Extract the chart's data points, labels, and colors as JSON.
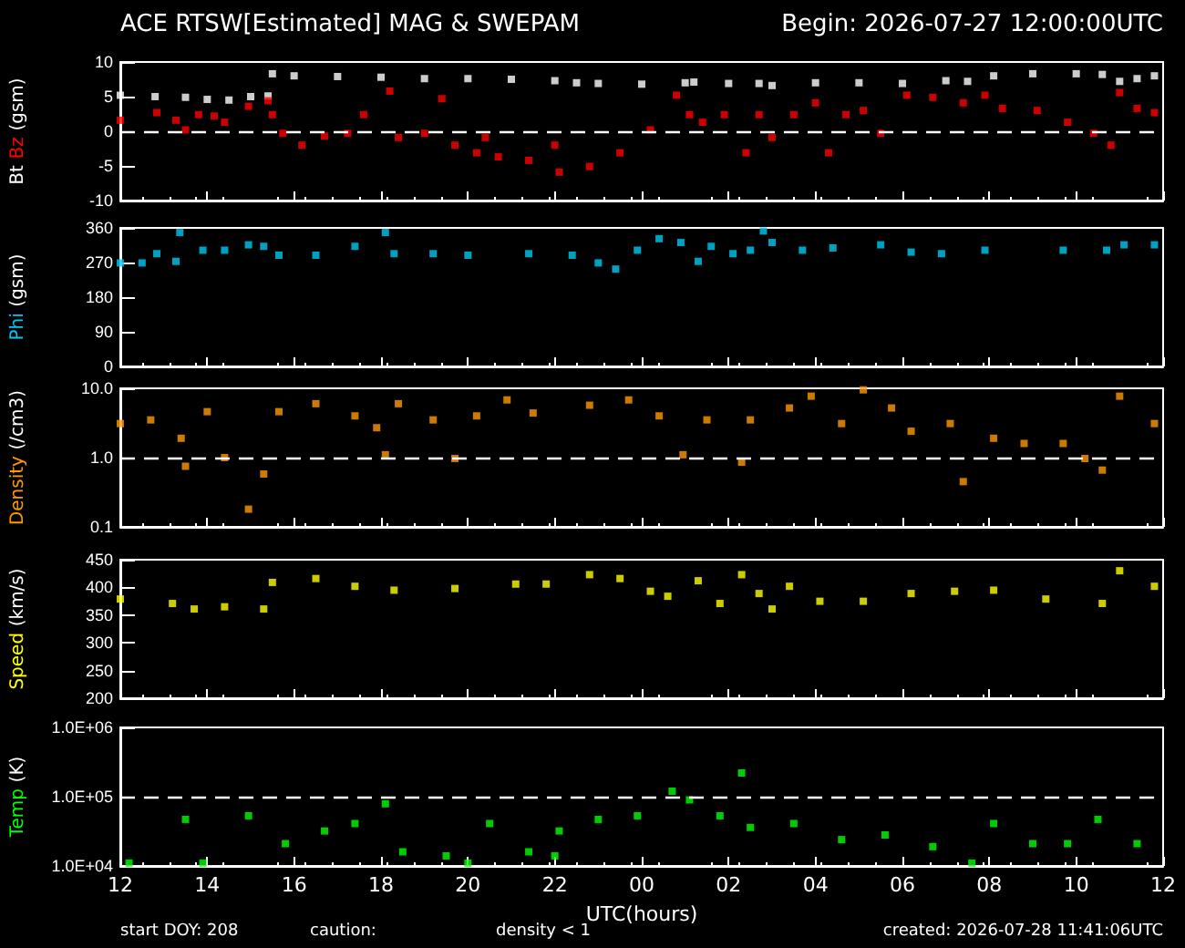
{
  "chart_data": [
    {
      "type": "scatter",
      "title": "ACE RTSW[Estimated] MAG & SWEPAM",
      "subtitle": "Begin: 2026-07-27 12:00:00UTC",
      "ylabel": "(gsm)",
      "marker": "square",
      "tick_labels": "y",
      "xlim": [
        12,
        36
      ],
      "xticks": [
        12,
        14,
        16,
        18,
        20,
        22,
        24,
        26,
        28,
        30,
        32,
        34,
        36
      ],
      "ylim": [
        -10,
        10
      ],
      "yticks": [
        -10,
        -5,
        0,
        5,
        10
      ],
      "ref_lines": [
        {
          "axis": "y",
          "value": 0,
          "color": "#ffffff",
          "line_style": "dashed"
        }
      ],
      "series": [
        {
          "name": "Bt",
          "color": "#ffffff",
          "x": [
            12,
            12.8,
            13.5,
            14,
            14.5,
            15,
            15.4,
            15.5,
            16,
            17,
            18,
            19,
            20,
            21,
            22,
            22.5,
            23,
            24,
            25,
            25.2,
            26,
            26.7,
            27,
            28,
            29,
            30,
            31,
            31.5,
            32.1,
            33,
            34,
            34.6,
            35,
            35.4,
            35.8
          ],
          "values": [
            5.2,
            5.0,
            4.9,
            4.6,
            4.5,
            5.0,
            5.1,
            8.3,
            8.0,
            7.9,
            7.8,
            7.6,
            7.6,
            7.5,
            7.3,
            7.0,
            6.9,
            6.8,
            7.0,
            7.1,
            6.9,
            6.9,
            6.6,
            7.0,
            7.0,
            6.9,
            7.3,
            7.2,
            8.0,
            8.3,
            8.3,
            8.2,
            7.2,
            7.6,
            8.0
          ]
        },
        {
          "name": "Bz",
          "color": "#ff0000",
          "x": [
            12,
            12.84,
            13.28,
            13.5,
            13.8,
            14.16,
            14.4,
            14.95,
            15.4,
            15.5,
            15.74,
            16.18,
            16.7,
            17.23,
            17.6,
            18.2,
            18.4,
            19.0,
            19.4,
            19.7,
            20.2,
            20.4,
            20.7,
            21.4,
            22.0,
            22.1,
            22.8,
            23.5,
            24.2,
            24.8,
            25.1,
            25.4,
            25.9,
            26.4,
            26.7,
            27.0,
            27.5,
            28.0,
            28.3,
            28.7,
            29.1,
            29.5,
            30.1,
            30.7,
            31.4,
            31.9,
            32.3,
            33.1,
            33.8,
            34.4,
            34.8,
            35.0,
            35.4,
            35.8
          ],
          "values": [
            1.6,
            2.7,
            1.6,
            0.2,
            2.4,
            2.2,
            1.3,
            3.6,
            4.4,
            2.4,
            -0.3,
            -2,
            -0.7,
            -0.3,
            2.4,
            5.8,
            -0.9,
            -0.3,
            4.7,
            -2,
            -3.1,
            -0.9,
            -3.7,
            -4.2,
            -2,
            -5.9,
            -5.1,
            -3.1,
            0.2,
            5.2,
            2.4,
            1.3,
            2.4,
            -3.1,
            2.4,
            -0.9,
            2.4,
            4.1,
            -3.1,
            2.4,
            3.0,
            -0.3,
            5.2,
            4.9,
            4.1,
            5.2,
            3.3,
            3.0,
            1.3,
            -0.3,
            -2,
            5.6,
            3.3,
            2.7
          ]
        }
      ]
    },
    {
      "type": "scatter",
      "ylabel": "(gsm)",
      "marker": "square",
      "tick_labels": "y",
      "xlim": [
        12,
        36
      ],
      "xticks": [
        12,
        14,
        16,
        18,
        20,
        22,
        24,
        26,
        28,
        30,
        32,
        34,
        36
      ],
      "ylim": [
        0,
        360
      ],
      "yticks": [
        0,
        90,
        180,
        270,
        360
      ],
      "series": [
        {
          "name": "Phi",
          "color": "#00c8f0",
          "x": [
            12,
            12.5,
            12.84,
            13.28,
            13.37,
            13.9,
            14.4,
            14.95,
            15.3,
            15.65,
            16.5,
            17.4,
            18.1,
            18.3,
            19.2,
            20.0,
            21.4,
            22.4,
            23.0,
            23.4,
            23.9,
            24.4,
            24.9,
            25.3,
            25.6,
            26.1,
            26.5,
            26.8,
            27.0,
            27.7,
            28.4,
            29.5,
            30.2,
            30.9,
            31.9,
            33.7,
            34.7,
            35.1,
            35.8
          ],
          "values": [
            269,
            269,
            293,
            273,
            348,
            302,
            302,
            316,
            312,
            289,
            289,
            312,
            348,
            293,
            293,
            289,
            293,
            289,
            269,
            253,
            302,
            332,
            322,
            273,
            312,
            293,
            302,
            352,
            322,
            302,
            308,
            316,
            297,
            293,
            302,
            302,
            302,
            316,
            316
          ]
        }
      ]
    },
    {
      "type": "scatter",
      "ylabel": "(/cm3)",
      "marker": "square",
      "tick_labels": "y",
      "log": "y",
      "xlim": [
        12,
        36
      ],
      "xticks": [
        12,
        14,
        16,
        18,
        20,
        22,
        24,
        26,
        28,
        30,
        32,
        34,
        36
      ],
      "ylim": [
        0.1,
        10
      ],
      "yticks": [
        {
          "value": 0.1,
          "label": "0.1"
        },
        {
          "value": 1,
          "label": "1.0"
        },
        {
          "value": 10,
          "label": "10.0"
        }
      ],
      "ref_lines": [
        {
          "axis": "y",
          "value": 1,
          "color": "#ffffff",
          "line_style": "dashed"
        }
      ],
      "series": [
        {
          "name": "Density",
          "color": "#ff9900",
          "x": [
            12,
            12.7,
            13.4,
            13.5,
            14.0,
            14.4,
            14.95,
            15.3,
            15.65,
            16.5,
            17.4,
            17.9,
            18.1,
            18.4,
            19.2,
            19.7,
            20.2,
            20.9,
            21.5,
            22.8,
            23.7,
            24.4,
            24.95,
            25.5,
            26.3,
            26.5,
            27.4,
            27.9,
            28.6,
            29.1,
            29.75,
            30.2,
            31.1,
            31.4,
            32.1,
            32.8,
            33.7,
            34.2,
            34.6,
            35.0,
            35.8
          ],
          "values": [
            3.1,
            3.5,
            1.9,
            0.75,
            4.6,
            1.0,
            0.18,
            0.58,
            4.6,
            6.0,
            4.0,
            2.7,
            1.1,
            6.0,
            3.5,
            0.97,
            4.0,
            6.8,
            4.4,
            5.7,
            6.8,
            4.0,
            1.1,
            3.5,
            0.86,
            3.5,
            5.2,
            7.7,
            3.1,
            9.5,
            5.2,
            2.4,
            3.1,
            0.45,
            1.9,
            1.6,
            1.6,
            0.97,
            0.66,
            7.7,
            3.1
          ]
        }
      ]
    },
    {
      "type": "scatter",
      "ylabel": "(km/s)",
      "marker": "square",
      "tick_labels": "y",
      "xlim": [
        12,
        36
      ],
      "xticks": [
        12,
        14,
        16,
        18,
        20,
        22,
        24,
        26,
        28,
        30,
        32,
        34,
        36
      ],
      "ylim": [
        200,
        450
      ],
      "yticks": [
        200,
        250,
        300,
        350,
        400,
        450
      ],
      "series": [
        {
          "name": "Speed",
          "color": "#ffff00",
          "x": [
            12,
            13.2,
            13.7,
            14.4,
            15.3,
            15.5,
            16.5,
            17.4,
            18.3,
            19.7,
            21.1,
            21.8,
            22.8,
            23.5,
            24.2,
            24.6,
            25.3,
            25.8,
            26.3,
            26.7,
            27.0,
            27.4,
            28.1,
            29.1,
            30.2,
            31.2,
            32.1,
            33.3,
            34.6,
            35.0,
            35.8
          ],
          "values": [
            379,
            371,
            361,
            365,
            361,
            409,
            416,
            402,
            395,
            398,
            406,
            406,
            423,
            416,
            393,
            384,
            412,
            371,
            423,
            389,
            361,
            402,
            375,
            375,
            389,
            393,
            395,
            379,
            371,
            430,
            402
          ]
        }
      ]
    },
    {
      "type": "scatter",
      "xlabel": "UTC(hours)",
      "ylabel": "(K)",
      "marker": "square",
      "log": "y",
      "xlim": [
        12,
        36
      ],
      "xticks": [
        {
          "value": 12,
          "label": "12"
        },
        {
          "value": 14,
          "label": "14"
        },
        {
          "value": 16,
          "label": "16"
        },
        {
          "value": 18,
          "label": "18"
        },
        {
          "value": 20,
          "label": "20"
        },
        {
          "value": 22,
          "label": "22"
        },
        {
          "value": 24,
          "label": "00"
        },
        {
          "value": 26,
          "label": "02"
        },
        {
          "value": 28,
          "label": "04"
        },
        {
          "value": 30,
          "label": "06"
        },
        {
          "value": 32,
          "label": "08"
        },
        {
          "value": 34,
          "label": "10"
        },
        {
          "value": 36,
          "label": "12"
        }
      ],
      "ylim": [
        10000,
        1000000
      ],
      "yticks": [
        {
          "value": 10000,
          "label": "1.0E+04"
        },
        {
          "value": 100000,
          "label": "1.0E+05"
        },
        {
          "value": 1000000,
          "label": "1.0E+06"
        }
      ],
      "ref_lines": [
        {
          "axis": "y",
          "value": 100000,
          "color": "#ffffff",
          "line_style": "dashed"
        }
      ],
      "annotations": [
        "start DOY: 208",
        "caution:",
        "density < 1",
        "created: 2026-07-28 11:41:06UTC"
      ],
      "series": [
        {
          "name": "Temp",
          "color": "#00ff00",
          "x": [
            12.2,
            13.5,
            13.9,
            14.95,
            15.8,
            16.7,
            17.4,
            18.1,
            18.5,
            19.5,
            20.0,
            20.5,
            21.4,
            22.0,
            22.1,
            23.0,
            23.9,
            24.7,
            25.1,
            25.8,
            26.3,
            26.5,
            27.5,
            28.6,
            29.6,
            30.7,
            31.6,
            32.1,
            33.0,
            33.8,
            34.5,
            35.4
          ],
          "values": [
            11000,
            47000,
            11000,
            53000,
            21000,
            32000,
            41000,
            79000,
            16000,
            14000,
            11000,
            41000,
            16000,
            14000,
            32000,
            47000,
            53000,
            120000,
            90000,
            53000,
            220000,
            36000,
            41000,
            24000,
            28000,
            19000,
            11000,
            41000,
            21000,
            21000,
            47000,
            21000
          ]
        }
      ]
    }
  ]
}
